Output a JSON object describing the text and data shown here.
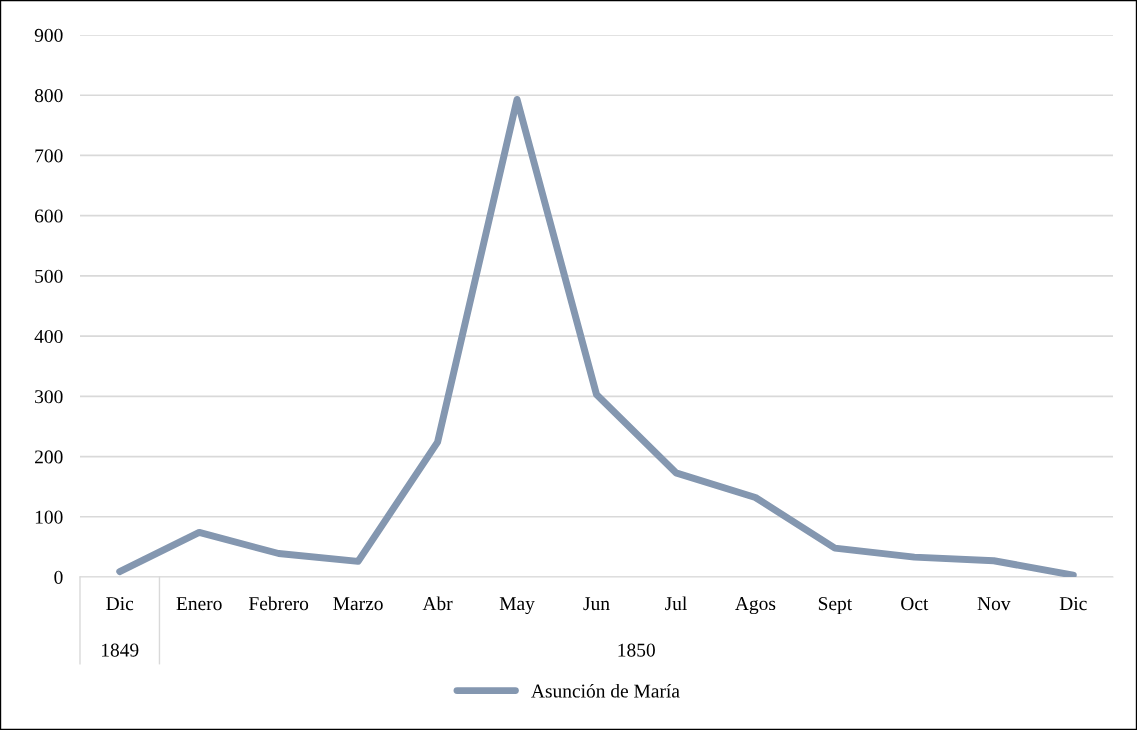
{
  "chart_data": {
    "type": "line",
    "categories": [
      "Dic",
      "Enero",
      "Febrero",
      "Marzo",
      "Abr",
      "May",
      "Jun",
      "Jul",
      "Agos",
      "Sept",
      "Oct",
      "Nov",
      "Dic"
    ],
    "series": [
      {
        "name": "Asunción de María",
        "color": "#8497b0",
        "values": [
          9,
          74,
          39,
          26,
          224,
          793,
          303,
          173,
          132,
          48,
          33,
          27,
          3
        ]
      }
    ],
    "ylim": [
      0,
      900
    ],
    "yticks": [
      0,
      100,
      200,
      300,
      400,
      500,
      600,
      700,
      800,
      900
    ],
    "grid": "y",
    "legend": "bottom",
    "marker": "none",
    "line_style": "solid",
    "annotations": [
      "1849",
      "1850"
    ]
  }
}
